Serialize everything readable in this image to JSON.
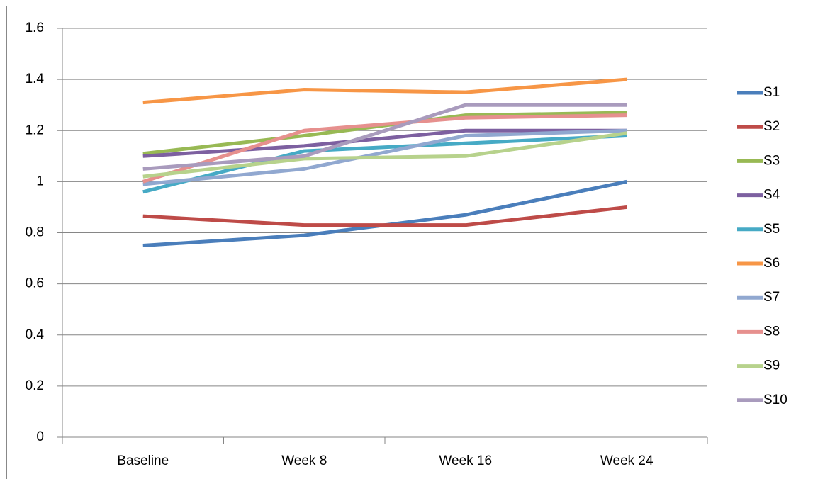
{
  "chart_data": {
    "type": "line",
    "categories": [
      "Baseline",
      "Week 8",
      "Week 16",
      "Week 24"
    ],
    "series": [
      {
        "name": "S1",
        "color": "#4a7ebb",
        "values": [
          0.75,
          0.79,
          0.87,
          1.0
        ]
      },
      {
        "name": "S2",
        "color": "#be4b48",
        "values": [
          0.865,
          0.83,
          0.83,
          0.9
        ]
      },
      {
        "name": "S3",
        "color": "#98b954",
        "values": [
          1.11,
          1.18,
          1.26,
          1.27
        ]
      },
      {
        "name": "S4",
        "color": "#7d60a0",
        "values": [
          1.1,
          1.14,
          1.2,
          1.2
        ]
      },
      {
        "name": "S5",
        "color": "#46aac5",
        "values": [
          0.96,
          1.12,
          1.15,
          1.18
        ]
      },
      {
        "name": "S6",
        "color": "#f79646",
        "values": [
          1.31,
          1.36,
          1.35,
          1.4
        ]
      },
      {
        "name": "S7",
        "color": "#91a8d0",
        "values": [
          0.99,
          1.05,
          1.18,
          1.2
        ]
      },
      {
        "name": "S8",
        "color": "#e6908e",
        "values": [
          1.0,
          1.2,
          1.25,
          1.26
        ]
      },
      {
        "name": "S9",
        "color": "#b7d28c",
        "values": [
          1.02,
          1.09,
          1.1,
          1.19
        ]
      },
      {
        "name": "S10",
        "color": "#a99bbd",
        "values": [
          1.05,
          1.1,
          1.3,
          1.3
        ]
      }
    ],
    "ylim": [
      0,
      1.6
    ],
    "yticks": [
      0,
      0.2,
      0.4,
      0.6,
      0.8,
      1,
      1.2,
      1.4,
      1.6
    ],
    "grid": true,
    "legend": "right"
  }
}
